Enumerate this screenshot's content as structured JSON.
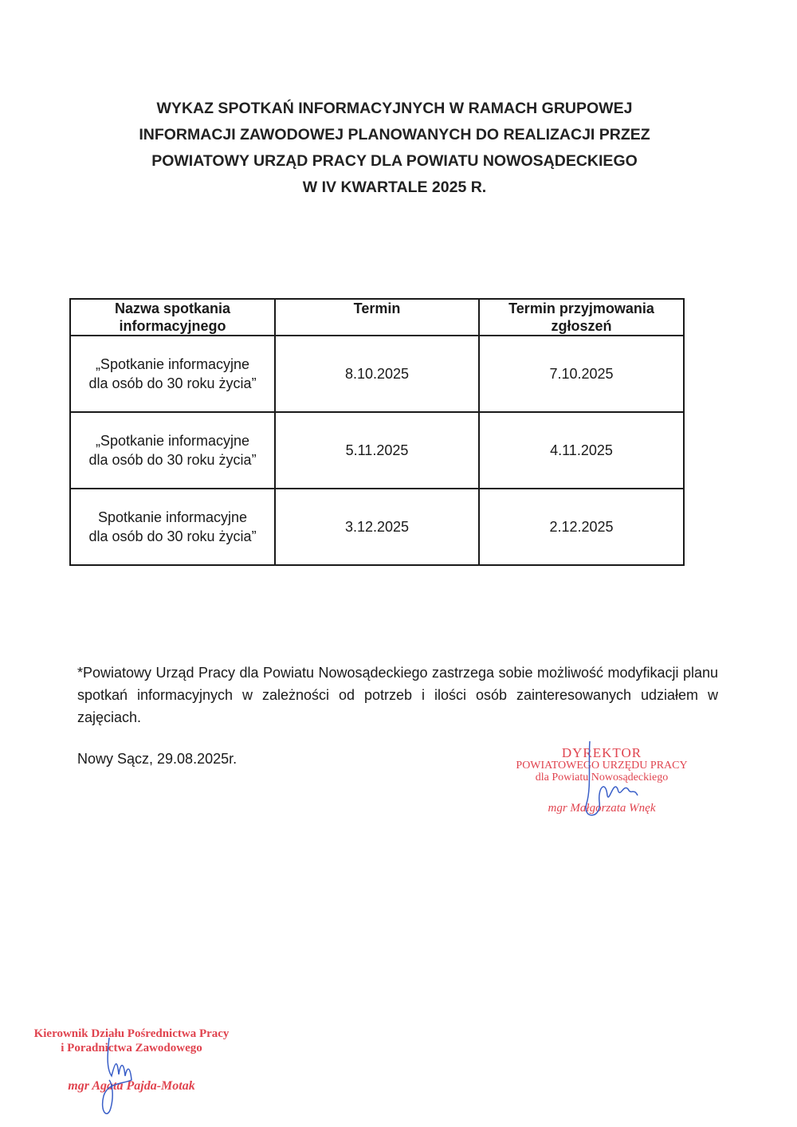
{
  "title": {
    "lines": [
      "WYKAZ SPOTKAŃ INFORMACYJNYCH W RAMACH GRUPOWEJ",
      "INFORMACJI ZAWODOWEJ PLANOWANYCH DO REALIZACJI PRZEZ",
      "POWIATOWY URZĄD PRACY DLA POWIATU NOWOSĄDECKIEGO",
      "W IV KWARTALE 2025 R."
    ]
  },
  "table": {
    "headers": [
      "Nazwa spotkania informacyjnego",
      "Termin",
      "Termin przyjmowania zgłoszeń"
    ],
    "rows": [
      {
        "name_line1": "„Spotkanie informacyjne",
        "name_line2": "dla osób do 30 roku życia”",
        "termin": "8.10.2025",
        "zgloszenia": "7.10.2025"
      },
      {
        "name_line1": "„Spotkanie informacyjne",
        "name_line2": "dla osób do 30 roku życia”",
        "termin": "5.11.2025",
        "zgloszenia": "4.11.2025"
      },
      {
        "name_line1": "Spotkanie informacyjne",
        "name_line2": "dla osób do 30 roku życia”",
        "termin": "3.12.2025",
        "zgloszenia": "2.12.2025"
      }
    ]
  },
  "note": "*Powiatowy Urząd Pracy dla Powiatu Nowosądeckiego zastrzega sobie możliwość modyfikacji planu spotkań informacyjnych w zależności od potrzeb i ilości osób zainteresowanych udziałem w zajęciach.",
  "place_date": "Nowy Sącz, 29.08.2025r.",
  "stamp_director": {
    "line1": "DYREKTOR",
    "line2": "POWIATOWEGO URZĘDU PRACY",
    "line3": "dla Powiatu Nowosądeckiego",
    "name": "mgr Małgorzata Wnęk",
    "color": "#e0444f"
  },
  "stamp_manager": {
    "line1": "Kierownik Działu Pośrednictwa Pracy",
    "line2": "i Poradnictwa Zawodowego",
    "name": "mgr Agata Pajda-Motak",
    "color": "#e0444f"
  },
  "signature_color": "#3a5fc8"
}
